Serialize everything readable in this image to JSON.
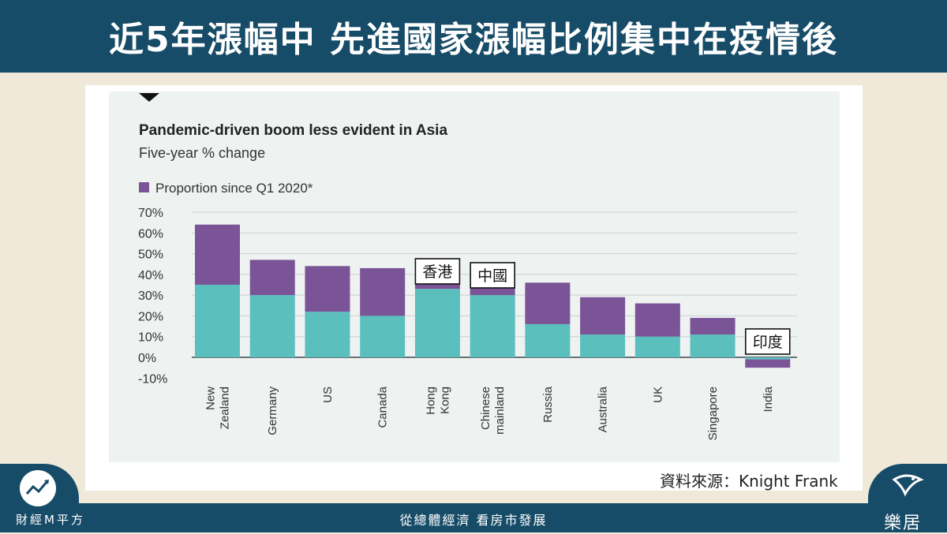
{
  "banner": {
    "title": "近5年漲幅中 先進國家漲幅比例集中在疫情後"
  },
  "source_note": "資料來源：Knight Frank",
  "footer": {
    "slogan": "從總體經濟 看房市發展",
    "brand_left": "財經M平方",
    "brand_right": "樂居"
  },
  "annotations": [
    "香港",
    "中國",
    "印度"
  ],
  "colors": {
    "purple": "#7a5497",
    "teal": "#5bbfbd",
    "navy": "#174c68"
  },
  "chart_data": {
    "type": "bar",
    "title": "Pandemic-driven boom less evident in Asia",
    "subtitle": "Five-year % change",
    "legend": [
      "Proportion since Q1 2020*"
    ],
    "y_ticks": [
      "70%",
      "60%",
      "50%",
      "40%",
      "30%",
      "20%",
      "10%",
      "0%",
      "-10%"
    ],
    "ylim": [
      -10,
      70
    ],
    "categories": [
      [
        "New",
        "Zealand"
      ],
      [
        "Germany"
      ],
      [
        "US"
      ],
      [
        "Canada"
      ],
      [
        "Hong",
        "Kong"
      ],
      [
        "Chinese",
        "mainland"
      ],
      [
        "Russia"
      ],
      [
        "Australia"
      ],
      [
        "UK"
      ],
      [
        "Singapore"
      ],
      [
        "India"
      ]
    ],
    "series": [
      {
        "name": "",
        "color": "#5bbfbd",
        "values": [
          35,
          30,
          22,
          20,
          33,
          30,
          16,
          11,
          10,
          11,
          -1
        ]
      },
      {
        "name": "Proportion since Q1 2020*",
        "color": "#7a5497",
        "values": [
          29,
          17,
          22,
          23,
          6,
          6,
          20,
          18,
          16,
          8,
          -4
        ]
      }
    ],
    "grid": true
  }
}
